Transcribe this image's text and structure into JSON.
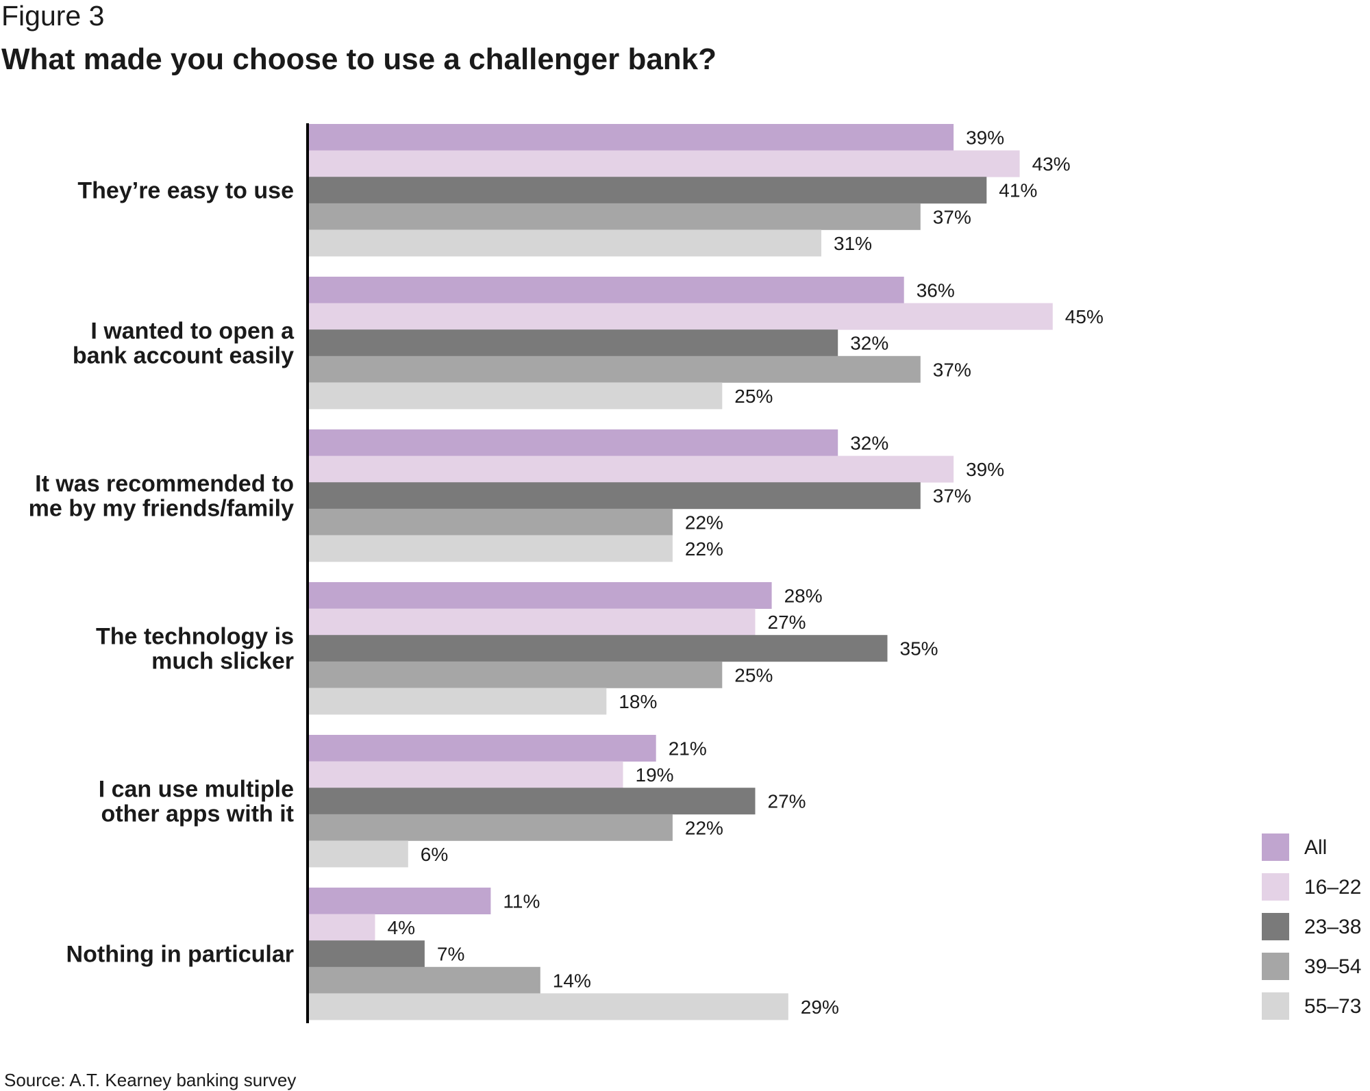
{
  "figure_label": "Figure 3",
  "source": "Source: A.T. Kearney banking survey",
  "chart_data": {
    "type": "bar",
    "orientation": "horizontal",
    "title": "What made you choose to use a challenger bank?",
    "xlabel": "",
    "ylabel": "",
    "value_suffix": "%",
    "xlim": [
      0,
      45
    ],
    "grid": false,
    "legend_position": "bottom-right",
    "categories": [
      [
        "They’re easy to use"
      ],
      [
        "I wanted to open a",
        "bank account easily"
      ],
      [
        "It was recommended to",
        "me by my friends/family"
      ],
      [
        "The technology is",
        "much slicker"
      ],
      [
        "I can use multiple",
        "other apps with it"
      ],
      [
        "Nothing in particular"
      ]
    ],
    "series": [
      {
        "name": "All",
        "color": "#c0a5cf",
        "values": [
          39,
          36,
          32,
          28,
          21,
          11
        ]
      },
      {
        "name": "16–22",
        "color": "#e4d2e6",
        "values": [
          43,
          45,
          39,
          27,
          19,
          4
        ]
      },
      {
        "name": "23–38",
        "color": "#7a7a7a",
        "values": [
          41,
          32,
          37,
          35,
          27,
          7
        ]
      },
      {
        "name": "39–54",
        "color": "#a6a6a6",
        "values": [
          37,
          37,
          22,
          25,
          22,
          14
        ]
      },
      {
        "name": "55–73",
        "color": "#d6d6d6",
        "values": [
          31,
          25,
          22,
          18,
          6,
          29
        ]
      }
    ]
  }
}
